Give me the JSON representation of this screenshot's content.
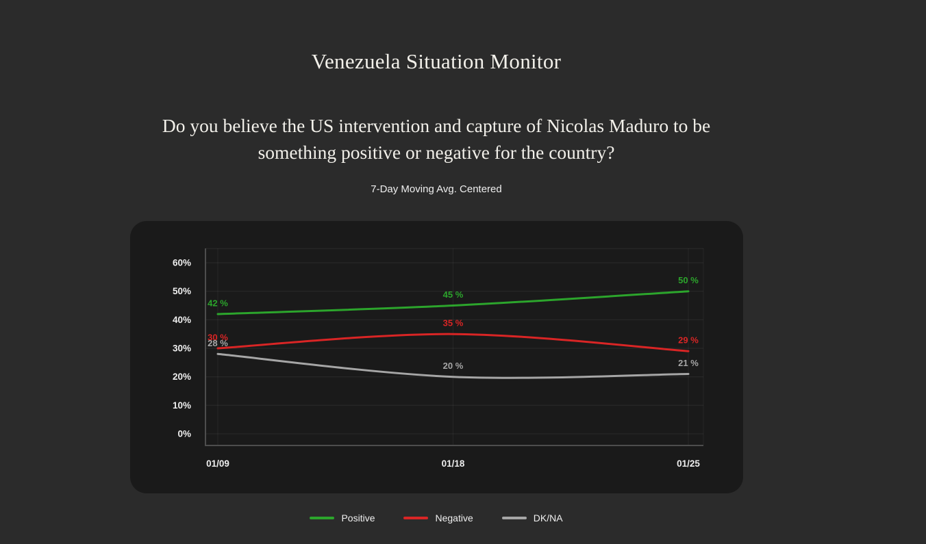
{
  "page": {
    "title": "Venezuela Situation Monitor",
    "question": "Do you believe the US intervention and capture of Nicolas Maduro to be something positive or negative for the country?",
    "subtitle": "7-Day Moving Avg. Centered"
  },
  "colors": {
    "page_background": "#2b2b2b",
    "card_background": "#1a1a1a",
    "text": "#f2f0ea",
    "tick_text": "#eeeeee",
    "axis_line": "#4d4d4d",
    "gridline": "rgba(255,255,255,0.07)",
    "positive": "#2ca52c",
    "negative": "#d92525",
    "dkna": "#a6a6a6"
  },
  "chart_data": {
    "type": "line",
    "title": "Do you believe the US intervention and capture of Nicolas Maduro to be something positive or negative for the country?",
    "subtitle": "7-Day Moving Avg. Centered",
    "categories": [
      "01/09",
      "01/18",
      "01/25"
    ],
    "series": [
      {
        "name": "Positive",
        "color": "#2ca52c",
        "values": [
          42,
          45,
          50
        ],
        "labels": [
          "42 %",
          "45 %",
          "50 %"
        ]
      },
      {
        "name": "Negative",
        "color": "#d92525",
        "values": [
          30,
          35,
          29
        ],
        "labels": [
          "30 %",
          "35 %",
          "29 %"
        ]
      },
      {
        "name": "DK/NA",
        "color": "#a6a6a6",
        "values": [
          28,
          20,
          21
        ],
        "labels": [
          "28 %",
          "20 %",
          "21 %"
        ]
      }
    ],
    "xlabel": "",
    "ylabel": "",
    "ylim": [
      0,
      65
    ],
    "yticks": [
      0,
      10,
      20,
      30,
      40,
      50,
      60
    ],
    "ytick_labels": [
      "0%",
      "10%",
      "20%",
      "30%",
      "40%",
      "50%",
      "60%"
    ],
    "grid": true,
    "smooth": true,
    "data_labels": true,
    "legend_position": "bottom"
  }
}
